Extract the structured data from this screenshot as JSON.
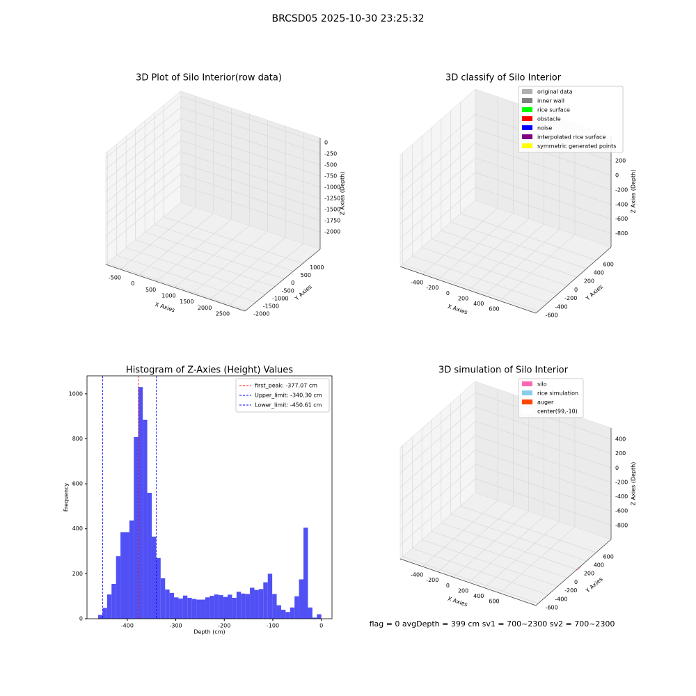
{
  "title": "BRCSD05 2025-10-30 23:25:32",
  "footer": "flag = 0    avgDepth = 399 cm  sv1 = 700~2300  sv2 = 700~2300",
  "chart_data": [
    {
      "type": "scatter3d",
      "title": "3D Plot of Silo Interior(row data)",
      "xlabel": "X Axies",
      "ylabel": "Y Axies",
      "zlabel": "Z Axies (Depth)",
      "xlim": [
        -905,
        2965
      ],
      "ylim": [
        -2080,
        1920
      ],
      "zlim": [
        -2390,
        110
      ],
      "xticks": [
        -500,
        0,
        500,
        1000,
        1500,
        2000,
        2500
      ],
      "yticks": [
        -2000,
        -1500,
        -1000,
        -500,
        0,
        500,
        1000
      ],
      "zticks": [
        -2000,
        -1750,
        -1500,
        -1250,
        -1000,
        -750,
        -500,
        -250,
        0
      ]
    },
    {
      "type": "scatter3d",
      "title": "3D classify of Silo Interior",
      "xlabel": "X Axies",
      "ylabel": "Y Axies",
      "zlabel": "Z Axies (Depth)",
      "xlim": [
        -690,
        1070
      ],
      "ylim": [
        -650,
        910
      ],
      "zlim": [
        -985,
        545
      ],
      "xticks": [
        -400,
        -200,
        0,
        200,
        400,
        600
      ],
      "yticks": [
        -600,
        -400,
        -200,
        0,
        200,
        400,
        600
      ],
      "zticks": [
        -800,
        -600,
        -400,
        -200,
        0,
        200
      ],
      "legend": [
        {
          "label": "original data",
          "color": "#b0b0b0"
        },
        {
          "label": "inner wall",
          "color": "#808080"
        },
        {
          "label": "rice surface",
          "color": "#00ff00"
        },
        {
          "label": "obstacle",
          "color": "#ff0000"
        },
        {
          "label": "noise",
          "color": "#0000ff"
        },
        {
          "label": "interpolated rice surface",
          "color": "#800080"
        },
        {
          "label": "symmetric generated points",
          "color": "#ffff00"
        }
      ]
    },
    {
      "type": "histogram",
      "title": "Histogram of Z-Axies (Height) Values",
      "xlabel": "Depth (cm)",
      "ylabel": "Frequency",
      "color": "#5050f5",
      "bins": [
        -460,
        -450.8,
        -441.6,
        -432.4,
        -423.2,
        -414,
        -404.8,
        -395.6,
        -386.4,
        -377.2,
        -368,
        -358.8,
        -349.6,
        -340.4,
        -331.2,
        -322,
        -312.8,
        -303.6,
        -294.4,
        -285.2,
        -276,
        -266.8,
        -257.6,
        -248.4,
        -239.2,
        -230,
        -220.8,
        -211.6,
        -202.4,
        -193.2,
        -184,
        -174.8,
        -165.6,
        -156.4,
        -147.2,
        -138,
        -128.8,
        -119.6,
        -110.4,
        -101.2,
        -92,
        -82.8,
        -73.6,
        -64.4,
        -55.2,
        -46,
        -36.8,
        -27.6,
        -18.4,
        -9.2,
        0
      ],
      "values": [
        17,
        48,
        108,
        155,
        278,
        385,
        385,
        437,
        808,
        1030,
        885,
        560,
        365,
        270,
        180,
        130,
        115,
        95,
        90,
        103,
        93,
        88,
        85,
        85,
        95,
        102,
        108,
        105,
        97,
        107,
        93,
        120,
        112,
        110,
        138,
        128,
        132,
        162,
        200,
        110,
        60,
        40,
        30,
        50,
        100,
        175,
        405,
        50,
        5,
        20
      ],
      "xlim": [
        -483,
        22
      ],
      "ylim": [
        0,
        1080
      ],
      "xticks": [
        -400,
        -300,
        -200,
        -100,
        0
      ],
      "yticks": [
        0,
        200,
        400,
        600,
        800,
        1000
      ],
      "lines": [
        {
          "value": -377.07,
          "label": "first_peak: -377.07 cm",
          "color": "#ff0000"
        },
        {
          "value": -340.3,
          "label": "Upper_limit: -340.30 cm",
          "color": "#0000ff"
        },
        {
          "value": -450.61,
          "label": "Lower_limit: -450.61 cm",
          "color": "#0000ff"
        }
      ],
      "legend_loc": "upper right"
    },
    {
      "type": "scatter3d",
      "title": "3D simulation of Silo Interior",
      "xlabel": "X Axies",
      "ylabel": "Y Axies",
      "zlabel": "Z Axies (Depth)",
      "xlim": [
        -690,
        1070
      ],
      "ylim": [
        -650,
        910
      ],
      "zlim": [
        -995,
        555
      ],
      "xticks": [
        -400,
        -200,
        0,
        200,
        400,
        600
      ],
      "yticks": [
        -600,
        -400,
        -200,
        0,
        200,
        400,
        600
      ],
      "zticks": [
        -800,
        -600,
        -400,
        -200,
        0,
        200,
        400
      ],
      "legend": [
        {
          "label": "silo",
          "color": "#ff69b4"
        },
        {
          "label": "rice simulation",
          "color": "#87ceeb"
        },
        {
          "label": "auger",
          "color": "#ff4500"
        },
        {
          "label": "center(99,-10)",
          "color": "#ffffff"
        }
      ]
    }
  ]
}
